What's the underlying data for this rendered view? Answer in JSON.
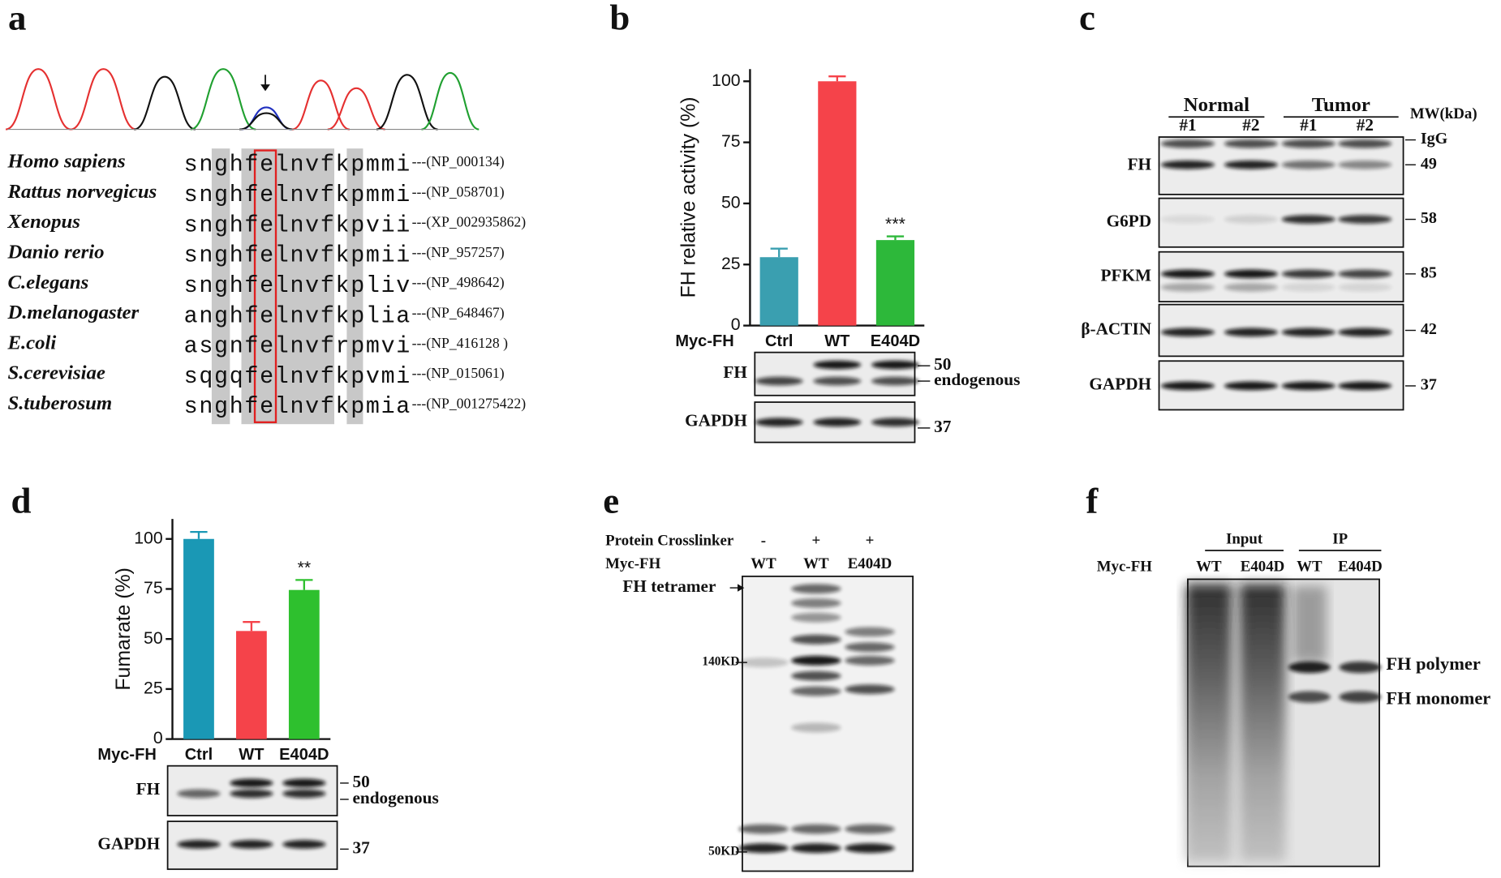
{
  "panels": {
    "a": {
      "label": "a",
      "alignment": [
        {
          "species": "Homo sapiens",
          "sequence": "snghfelnvfkpmmi",
          "accession": "---(NP_000134)"
        },
        {
          "species": "Rattus norvegicus",
          "sequence": "snghfelnvfkpmmi",
          "accession": "---(NP_058701)"
        },
        {
          "species": "Xenopus",
          "sequence": "snghfelnvfkpvii",
          "accession": "---(XP_002935862)"
        },
        {
          "species": "Danio rerio",
          "sequence": "snghfelnvfkpmii",
          "accession": "---(NP_957257)"
        },
        {
          "species": "C.elegans",
          "sequence": "snghfelnvfkpliv",
          "accession": "---(NP_498642)"
        },
        {
          "species": "D.melanogaster",
          "sequence": "anghfelnvfkplia",
          "accession": "---(NP_648467)"
        },
        {
          "species": "E.coli",
          "sequence": "asgnfelnvfrpmvi",
          "accession": "---(NP_416128 )"
        },
        {
          "species": "S.cerevisiae",
          "sequence": "sqgqfelnvfkpvmi",
          "accession": "---(NP_015061)"
        },
        {
          "species": "S.tuberosum",
          "sequence": "snghfelnvfkpmia",
          "accession": "---(NP_001275422)"
        }
      ]
    },
    "b": {
      "label": "b",
      "blots": [
        {
          "name": "FH",
          "markers": [
            "50",
            "endogenous"
          ]
        },
        {
          "name": "GAPDH",
          "markers": [
            "37"
          ]
        }
      ]
    },
    "c": {
      "label": "c",
      "groups": [
        {
          "name": "Normal",
          "lanes": [
            "#1",
            "#2"
          ]
        },
        {
          "name": "Tumor",
          "lanes": [
            "#1",
            "#2"
          ]
        }
      ],
      "mw_title": "MW(kDa)",
      "rows": [
        {
          "name": "FH",
          "mw": [
            "IgG",
            "49"
          ]
        },
        {
          "name": "G6PD",
          "mw": [
            "58"
          ]
        },
        {
          "name": "PFKM",
          "mw": [
            "85"
          ]
        },
        {
          "name": "β-ACTIN",
          "mw": [
            "42"
          ]
        },
        {
          "name": "GAPDH",
          "mw": [
            "37"
          ]
        }
      ]
    },
    "d": {
      "label": "d",
      "blots": [
        {
          "name": "FH",
          "markers": [
            "50",
            "endogenous"
          ]
        },
        {
          "name": "GAPDH",
          "markers": [
            "37"
          ]
        }
      ]
    },
    "e": {
      "label": "e",
      "rows": [
        {
          "name": "Protein Crosslinker",
          "lanes": [
            "-",
            "+",
            "+"
          ]
        },
        {
          "name": "Myc-FH",
          "lanes": [
            "WT",
            "WT",
            "E404D"
          ]
        }
      ],
      "markers": [
        "FH tetramer",
        "140KD",
        "50KD"
      ]
    },
    "f": {
      "label": "f",
      "groups": [
        {
          "name": "Input",
          "lanes": [
            "WT",
            "E404D"
          ]
        },
        {
          "name": "IP",
          "lanes": [
            "WT",
            "E404D"
          ]
        }
      ],
      "row_label": "Myc-FH",
      "markers": [
        "FH polymer",
        "FH monomer"
      ]
    }
  },
  "chart_data": [
    {
      "type": "bar",
      "y_label": "FH relative activity (%)",
      "row_label": "Myc-FH",
      "categories": [
        "Ctrl",
        "WT",
        "E404D"
      ],
      "values": [
        28,
        100,
        35
      ],
      "errors": [
        3.5,
        2,
        1.5
      ],
      "colors": [
        "#3a9fb0",
        "#f5434a",
        "#2db83a"
      ],
      "annotations": [
        null,
        null,
        "***"
      ],
      "ylim": [
        0,
        105
      ],
      "yticks": [
        0,
        25,
        50,
        75,
        100
      ]
    },
    {
      "type": "bar",
      "y_label": "Fumarate (%)",
      "row_label": "Myc-FH",
      "categories": [
        "Ctrl",
        "WT",
        "E404D"
      ],
      "values": [
        100,
        54,
        74.5
      ],
      "errors": [
        3.5,
        4.5,
        5
      ],
      "colors": [
        "#1a98b5",
        "#f5434a",
        "#2ec02e"
      ],
      "annotations": [
        null,
        null,
        "**"
      ],
      "ylim": [
        0,
        110
      ],
      "yticks": [
        0,
        25,
        50,
        75,
        100
      ]
    }
  ]
}
